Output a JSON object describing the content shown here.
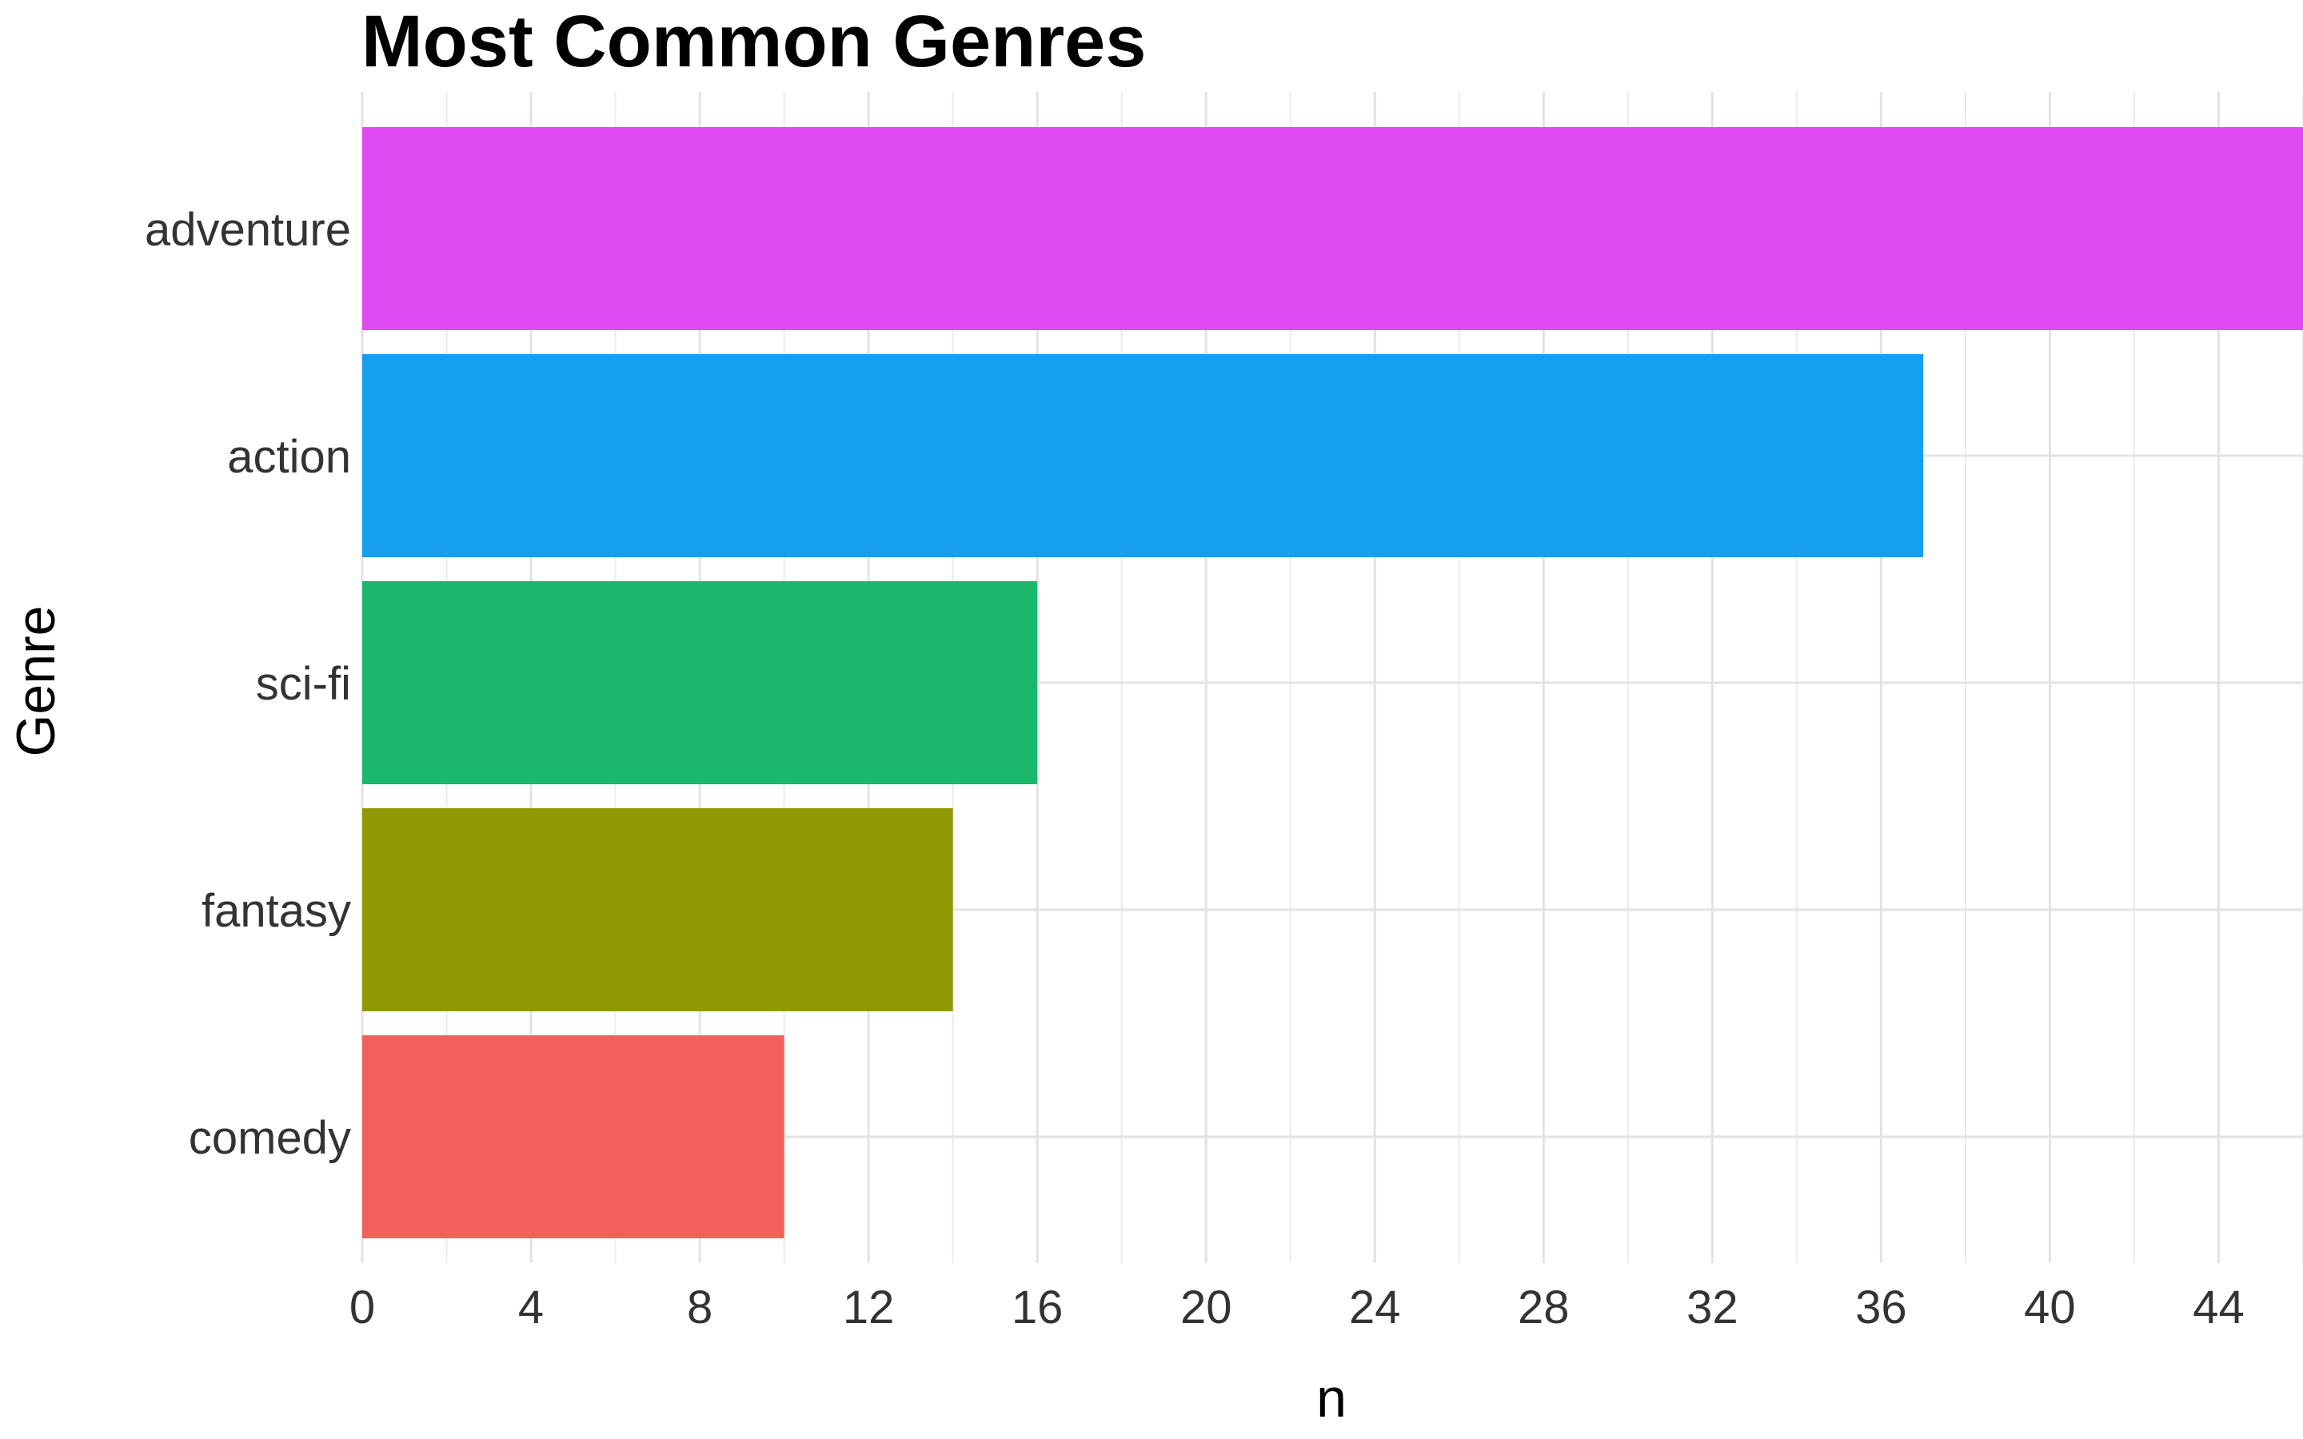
{
  "chart_data": {
    "type": "bar",
    "orientation": "horizontal",
    "title": "Most Common Genres",
    "xlabel": "n",
    "ylabel": "Genre",
    "categories": [
      "adventure",
      "action",
      "sci-fi",
      "fantasy",
      "comedy"
    ],
    "values": [
      46,
      37,
      16,
      14,
      10
    ],
    "colors": [
      "#E04BF1",
      "#169FF0",
      "#1AB76D",
      "#929804",
      "#F2605C"
    ],
    "xlim": [
      0,
      46
    ],
    "xticks": [
      "0",
      "4",
      "8",
      "12",
      "16",
      "20",
      "24",
      "28",
      "32",
      "36",
      "40",
      "44"
    ],
    "grid": true,
    "legend": "none"
  }
}
